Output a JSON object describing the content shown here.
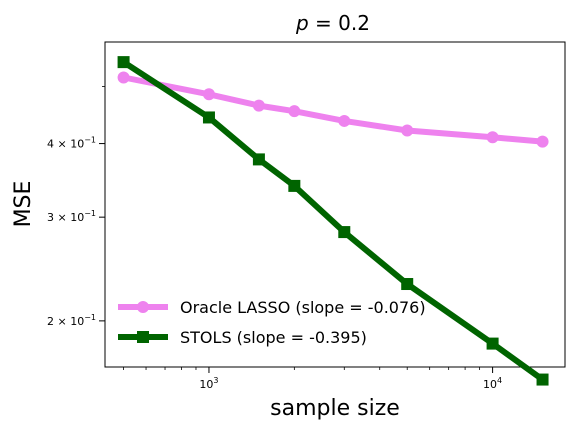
{
  "chart_data": {
    "type": "line",
    "title_var": "p",
    "title_rest": " = 0.2",
    "xlabel": "sample size",
    "ylabel": "MSE",
    "xscale": "log",
    "yscale": "log",
    "xlim": [
      430,
      18000
    ],
    "ylim": [
      0.167,
      0.595
    ],
    "grid": false,
    "legend_placement": "lower-left",
    "x_ticks": [
      {
        "value": 1000,
        "base": "10",
        "exp": "3"
      },
      {
        "value": 10000,
        "base": "10",
        "exp": "4"
      }
    ],
    "y_ticks": [
      {
        "value": 0.2,
        "mant": "2 × 10",
        "exp": "−1"
      },
      {
        "value": 0.3,
        "mant": "3 × 10",
        "exp": "−1"
      },
      {
        "value": 0.4,
        "mant": "4 × 10",
        "exp": "−1"
      }
    ],
    "series": [
      {
        "name": "Oracle LASSO (slope = -0.076)",
        "color": "#ee82ee",
        "marker": "circle",
        "x": [
          500,
          1000,
          1500,
          2000,
          3000,
          5000,
          10000,
          15000
        ],
        "y": [
          0.518,
          0.485,
          0.464,
          0.454,
          0.437,
          0.421,
          0.41,
          0.403
        ]
      },
      {
        "name": "STOLS (slope = -0.395)",
        "color": "#006400",
        "marker": "square",
        "x": [
          500,
          1000,
          1500,
          2000,
          3000,
          5000,
          10000,
          15000
        ],
        "y": [
          0.55,
          0.443,
          0.376,
          0.339,
          0.283,
          0.231,
          0.183,
          0.159
        ]
      }
    ]
  }
}
